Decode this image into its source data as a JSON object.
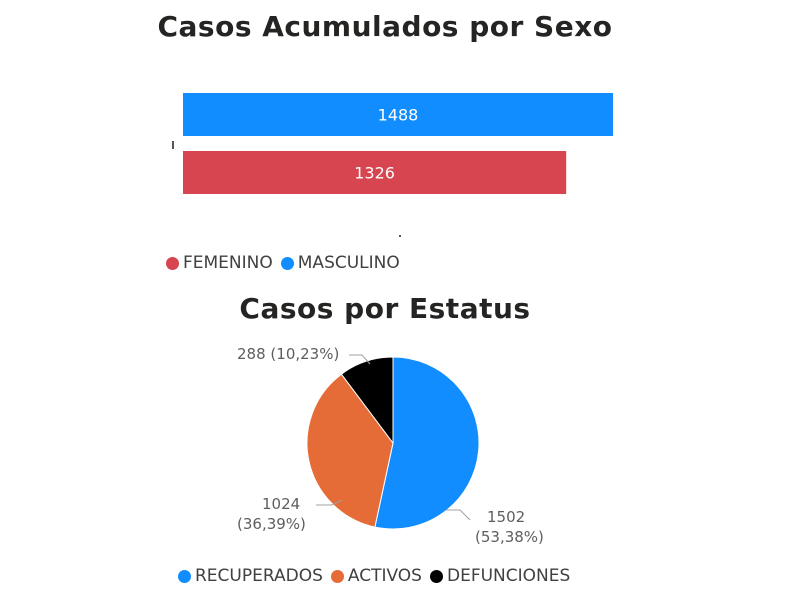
{
  "bar_chart": {
    "title": "Casos Acumulados por Sexo",
    "legend": [
      {
        "label": "FEMENINO",
        "color": "#D64550"
      },
      {
        "label": "MASCULINO",
        "color": "#118DFF"
      }
    ]
  },
  "pie_chart": {
    "title": "Casos por Estatus",
    "legend": [
      {
        "label": "RECUPERADOS",
        "color": "#118DFF"
      },
      {
        "label": "ACTIVOS",
        "color": "#E66C37"
      },
      {
        "label": "DEFUNCIONES",
        "color": "#000000"
      }
    ],
    "labels": {
      "defunciones": {
        "value": "288",
        "pct": "(10,23%)"
      },
      "activos": {
        "value": "1024",
        "pct": "(36,39%)"
      },
      "recuperados": {
        "value": "1502",
        "pct": "(53,38%)"
      }
    }
  },
  "chart_data": [
    {
      "type": "bar",
      "orientation": "horizontal",
      "title": "Casos Acumulados por Sexo",
      "categories": [
        "MASCULINO",
        "FEMENINO"
      ],
      "values": [
        1488,
        1326
      ],
      "colors": [
        "#118DFF",
        "#D64550"
      ],
      "data_labels": [
        "1488",
        "1326"
      ],
      "xlim": [
        0,
        1488
      ],
      "legend_position": "bottom-left"
    },
    {
      "type": "pie",
      "title": "Casos por Estatus",
      "categories": [
        "RECUPERADOS",
        "ACTIVOS",
        "DEFUNCIONES"
      ],
      "values": [
        1502,
        1024,
        288
      ],
      "percentages": [
        53.38,
        36.39,
        10.23
      ],
      "colors": [
        "#118DFF",
        "#E66C37",
        "#000000"
      ],
      "legend_position": "bottom"
    }
  ]
}
